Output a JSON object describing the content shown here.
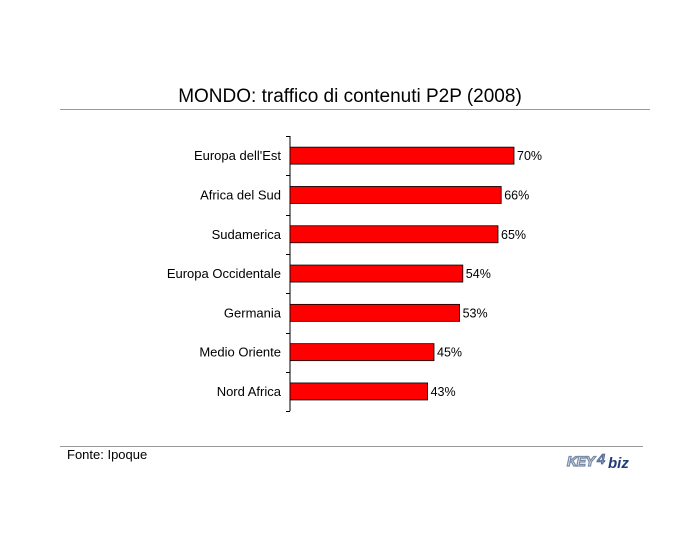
{
  "title": "MONDO: traffico di contenuti P2P (2008)",
  "source": "Fonte: Ipoque",
  "logo": {
    "text_main": "KEY",
    "text_digit": "4",
    "text_suffix": "biz",
    "colors": [
      "#7a8ea8",
      "#1f3d7a"
    ]
  },
  "colors": {
    "bar_fill": "#ff0000",
    "bar_stroke": "#000000",
    "axis": "#000000",
    "rule": "#9a9a9a"
  },
  "chart_data": {
    "type": "bar",
    "orientation": "horizontal",
    "categories": [
      "Europa dell'Est",
      "Africa del Sud",
      "Sudamerica",
      "Europa Occidentale",
      "Germania",
      "Medio Oriente",
      "Nord Africa"
    ],
    "values": [
      70,
      66,
      65,
      54,
      53,
      45,
      43
    ],
    "value_labels": [
      "70%",
      "66%",
      "65%",
      "54%",
      "53%",
      "45%",
      "43%"
    ],
    "unit": "%",
    "title": "MONDO: traffico di contenuti P2P (2008)",
    "xlabel": "",
    "ylabel": "",
    "xlim": [
      0,
      100
    ],
    "grid": false,
    "legend": "none"
  }
}
